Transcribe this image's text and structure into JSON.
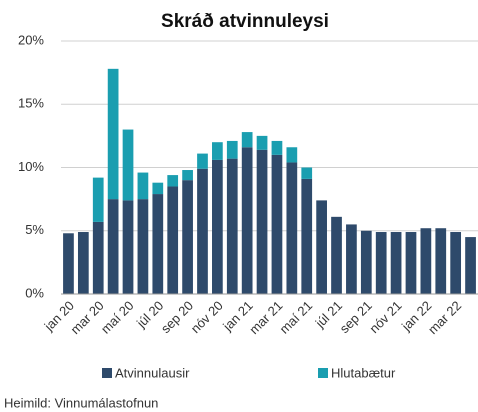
{
  "chart_data": {
    "type": "stacked_bar",
    "title": "Skráð atvinnuleysi",
    "categories": [
      "jan 20",
      null,
      "mar 20",
      null,
      "maí 20",
      null,
      "júl 20",
      null,
      "sep 20",
      null,
      "nóv 20",
      null,
      "jan 21",
      null,
      "mar 21",
      null,
      "maí 21",
      null,
      "júl 21",
      null,
      "sep 21",
      null,
      "nóv 21",
      null,
      "jan 22",
      null,
      "mar 22",
      null
    ],
    "series": [
      {
        "name": "Atvinnulausir",
        "color": "#2e4a6b",
        "values": [
          4.8,
          4.9,
          5.7,
          7.5,
          7.4,
          7.5,
          7.9,
          8.5,
          9.0,
          9.9,
          10.6,
          10.7,
          11.6,
          11.4,
          11.0,
          10.4,
          9.1,
          7.4,
          6.1,
          5.5,
          5.0,
          4.9,
          4.9,
          4.9,
          5.2,
          5.2,
          4.9,
          4.5
        ]
      },
      {
        "name": "Hlutabætur",
        "color": "#1a9eb0",
        "values": [
          0,
          0,
          3.5,
          10.3,
          5.6,
          2.1,
          0.9,
          0.9,
          0.8,
          1.2,
          1.4,
          1.4,
          1.2,
          1.1,
          1.1,
          1.2,
          0.9,
          0,
          0,
          0,
          0,
          0,
          0,
          0,
          0,
          0,
          0,
          0
        ]
      }
    ],
    "ylim": [
      0,
      20
    ],
    "yticks": [
      {
        "value": 0,
        "label": "0%"
      },
      {
        "value": 5,
        "label": "5%"
      },
      {
        "value": 10,
        "label": "10%"
      },
      {
        "value": 15,
        "label": "15%"
      },
      {
        "value": 20,
        "label": "20%"
      }
    ],
    "grid": true,
    "legend": "bottom",
    "source": "Heimild: Vinnumálastofnun"
  }
}
